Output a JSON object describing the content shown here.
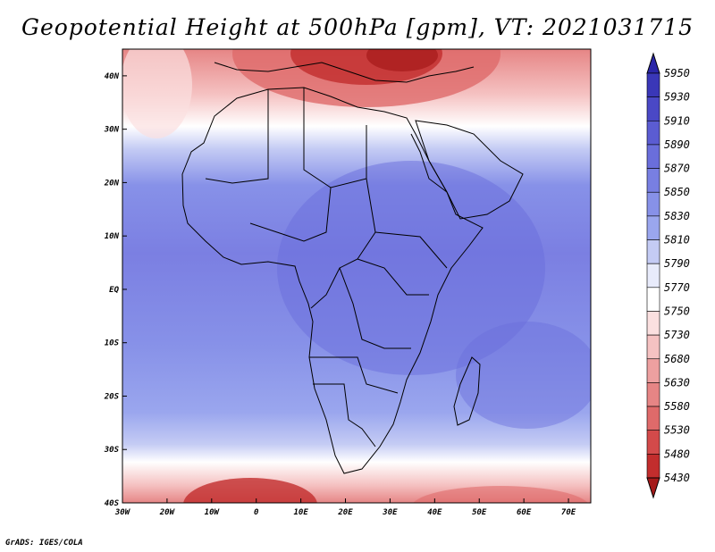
{
  "title": "Geopotential Height at 500hPa [gpm], VT: 2021031715",
  "footer": "GrADS: IGES/COLA",
  "map": {
    "lon_range": [
      -30,
      75
    ],
    "lat_range": [
      -40,
      45
    ],
    "x_ticks": [
      {
        "lon": -30,
        "label": "30W"
      },
      {
        "lon": -20,
        "label": "20W"
      },
      {
        "lon": -10,
        "label": "10W"
      },
      {
        "lon": 0,
        "label": "0"
      },
      {
        "lon": 10,
        "label": "10E"
      },
      {
        "lon": 20,
        "label": "20E"
      },
      {
        "lon": 30,
        "label": "30E"
      },
      {
        "lon": 40,
        "label": "40E"
      },
      {
        "lon": 50,
        "label": "50E"
      },
      {
        "lon": 60,
        "label": "60E"
      },
      {
        "lon": 70,
        "label": "70E"
      }
    ],
    "y_ticks": [
      {
        "lat": 40,
        "label": "40N"
      },
      {
        "lat": 30,
        "label": "30N"
      },
      {
        "lat": 20,
        "label": "20N"
      },
      {
        "lat": 10,
        "label": "10N"
      },
      {
        "lat": 0,
        "label": "EQ"
      },
      {
        "lat": -10,
        "label": "10S"
      },
      {
        "lat": -20,
        "label": "20S"
      },
      {
        "lat": -30,
        "label": "30S"
      },
      {
        "lat": -40,
        "label": "40S"
      }
    ]
  },
  "colorbar": {
    "levels": [
      "5950",
      "5930",
      "5910",
      "5890",
      "5870",
      "5850",
      "5830",
      "5810",
      "5790",
      "5770",
      "5750",
      "5730",
      "5680",
      "5630",
      "5580",
      "5530",
      "5480",
      "5430"
    ],
    "colors": [
      "#2b26a8",
      "#3a37b8",
      "#4a48c6",
      "#5b5cd2",
      "#6a6edb",
      "#787fe2",
      "#8791e8",
      "#9aa6ee",
      "#c4cbf4",
      "#e8ebfb",
      "#ffffff",
      "#fbe0e0",
      "#f5c2c2",
      "#eda0a0",
      "#e68585",
      "#df6a6a",
      "#d34a4a",
      "#c22d2d",
      "#a51a1a"
    ]
  }
}
